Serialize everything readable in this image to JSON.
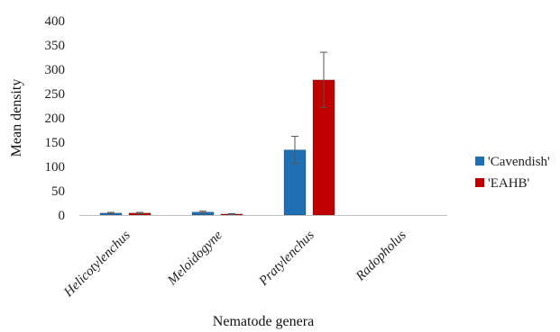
{
  "chart_data": {
    "type": "bar",
    "title": "",
    "xlabel": "Nematode genera",
    "ylabel": "Mean density",
    "ylim": [
      0,
      400
    ],
    "yticks": [
      0,
      50,
      100,
      150,
      200,
      250,
      300,
      350,
      400
    ],
    "grid": false,
    "legend_position": "right",
    "categories": [
      "Helicotylenchus",
      "Meloidogyne",
      "Pratylenchus",
      "Radopholus"
    ],
    "series": [
      {
        "name": "'Cavendish'",
        "color": "#1f6fb5",
        "values": [
          4,
          6,
          134,
          0
        ],
        "errors": [
          1.5,
          2,
          28,
          0
        ]
      },
      {
        "name": "'EAHB'",
        "color": "#c00000",
        "values": [
          4,
          2,
          278,
          0
        ],
        "errors": [
          1.5,
          1,
          57,
          0
        ]
      }
    ]
  }
}
